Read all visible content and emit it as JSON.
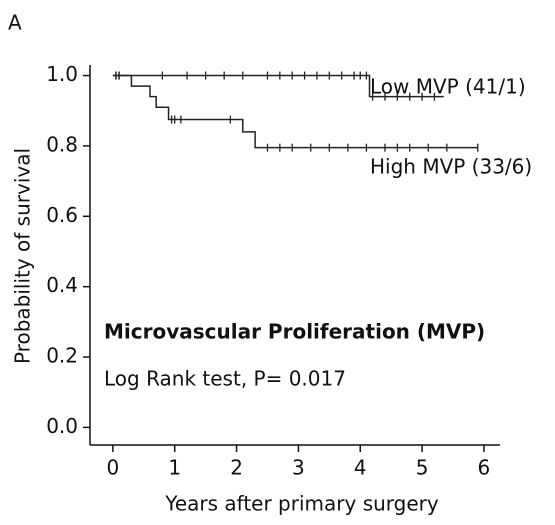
{
  "chart_data": {
    "type": "km",
    "panel_label": "A",
    "xlabel": "Years after primary surgery",
    "ylabel": "Probability of survival",
    "annotations": [
      "Microvascular Proliferation (MVP)",
      "Log Rank test, P= 0.017"
    ],
    "xlim": [
      -0.37,
      6.26
    ],
    "ylim": [
      -0.05,
      1.03
    ],
    "xticks": [
      0,
      1,
      2,
      3,
      4,
      5,
      6
    ],
    "yticks": [
      {
        "value": 0,
        "label": "0.0"
      },
      0.2,
      0.4,
      0.6,
      0.8,
      {
        "value": 1,
        "label": "1.0"
      }
    ],
    "series": [
      {
        "name": "Low MVP (41/1)",
        "color": "#222222",
        "x": [
          0,
          4.15,
          4.15,
          5.35
        ],
        "values": [
          1,
          1,
          0.94,
          0.94
        ],
        "censor_x": [
          0.05,
          0.1,
          0.8,
          1.2,
          1.5,
          1.8,
          2.1,
          2.5,
          2.7,
          2.9,
          3.1,
          3.3,
          3.5,
          3.7,
          3.9,
          4.0,
          4.1,
          4.2,
          4.4,
          4.6,
          4.8,
          5.0,
          5.2
        ],
        "censor_values": [
          1,
          1,
          1,
          1,
          1,
          1,
          1,
          1,
          1,
          1,
          1,
          1,
          1,
          1,
          1,
          1,
          1,
          0.94,
          0.94,
          0.94,
          0.94,
          0.94,
          0.94
        ]
      },
      {
        "name": "High MVP (33/6)",
        "color": "#222222",
        "x": [
          0,
          0.3,
          0.3,
          0.6,
          0.6,
          0.7,
          0.7,
          0.9,
          0.9,
          2.1,
          2.1,
          2.3,
          2.3,
          5.9
        ],
        "values": [
          1,
          1,
          0.97,
          0.97,
          0.94,
          0.94,
          0.91,
          0.91,
          0.875,
          0.875,
          0.84,
          0.84,
          0.795,
          0.795
        ],
        "censor_x": [
          0.05,
          0.1,
          0.95,
          1.0,
          1.1,
          1.9,
          2.5,
          2.7,
          2.9,
          3.2,
          3.5,
          3.8,
          4.1,
          4.4,
          4.6,
          4.8,
          5.1,
          5.4,
          5.9
        ],
        "censor_values": [
          1,
          1,
          0.875,
          0.875,
          0.875,
          0.875,
          0.795,
          0.795,
          0.795,
          0.795,
          0.795,
          0.795,
          0.795,
          0.795,
          0.795,
          0.795,
          0.795,
          0.795,
          0.795
        ]
      }
    ]
  }
}
